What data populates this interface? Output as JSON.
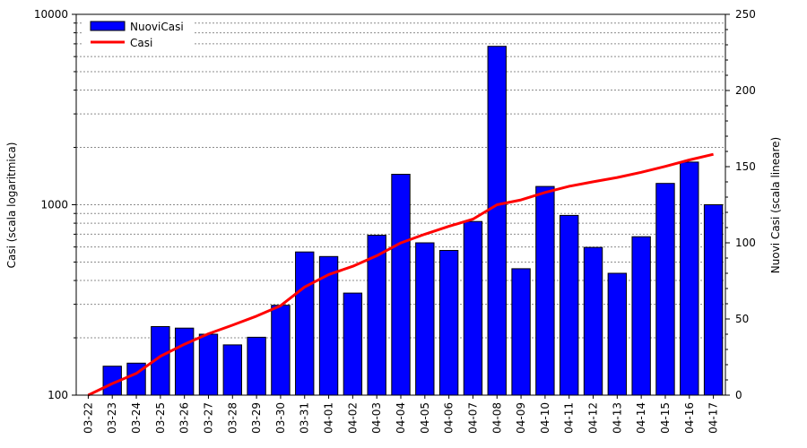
{
  "chart_data": {
    "type": "bar",
    "categories": [
      "03-22",
      "03-23",
      "03-24",
      "03-25",
      "03-26",
      "03-27",
      "03-28",
      "03-29",
      "03-30",
      "03-31",
      "04-01",
      "04-02",
      "04-03",
      "04-04",
      "04-05",
      "04-06",
      "04-07",
      "04-08",
      "04-09",
      "04-10",
      "04-11",
      "04-12",
      "04-13",
      "04-14",
      "04-15",
      "04-16",
      "04-17"
    ],
    "bars": {
      "name": "NuoviCasi",
      "axis": "right",
      "color": "#0000ff",
      "values": [
        0,
        19,
        21,
        45,
        44,
        40,
        33,
        38,
        59,
        94,
        91,
        67,
        105,
        145,
        100,
        95,
        114,
        229,
        83,
        137,
        118,
        97,
        80,
        104,
        139,
        153,
        125
      ]
    },
    "line": {
      "name": "Casi",
      "axis": "left",
      "color": "#ff0000",
      "values": [
        100,
        115,
        130,
        160,
        185,
        210,
        233,
        260,
        295,
        370,
        430,
        475,
        540,
        630,
        700,
        770,
        840,
        1000,
        1060,
        1160,
        1250,
        1320,
        1390,
        1480,
        1590,
        1720,
        1840
      ]
    },
    "left_axis": {
      "label": "Casi (scala logaritmica)",
      "scale": "log",
      "range": [
        100,
        10000
      ],
      "ticks": [
        "100",
        "1000",
        "10000"
      ]
    },
    "right_axis": {
      "label": "Nuovi Casi (scala lineare)",
      "scale": "linear",
      "range": [
        0,
        250
      ],
      "ticks": [
        "0",
        "50",
        "100",
        "150",
        "200",
        "250"
      ]
    },
    "legend": {
      "position": "top-left",
      "entries": [
        "NuoviCasi",
        "Casi"
      ]
    },
    "grid": "horizontal-log-minor"
  }
}
